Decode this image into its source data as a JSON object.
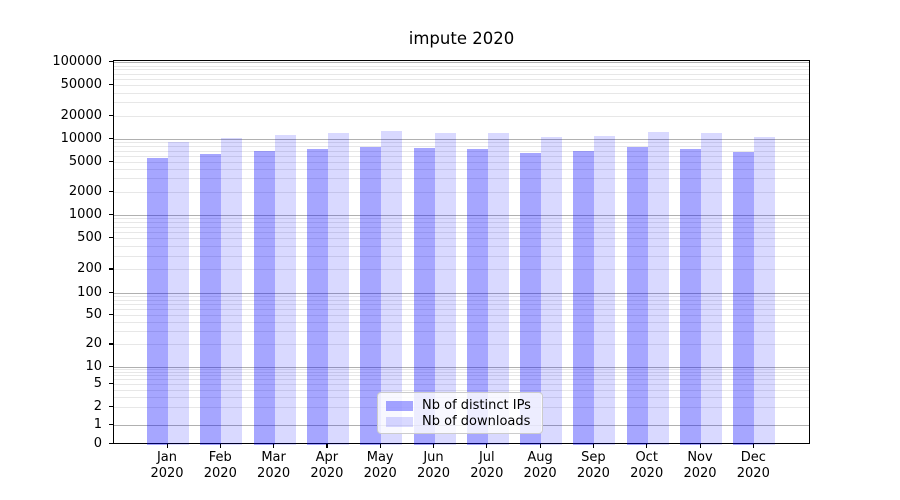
{
  "chart_data": {
    "type": "bar",
    "title": "impute 2020",
    "categories": [
      "Jan 2020",
      "Feb 2020",
      "Mar 2020",
      "Apr 2020",
      "May 2020",
      "Jun 2020",
      "Jul 2020",
      "Aug 2020",
      "Sep 2020",
      "Oct 2020",
      "Nov 2020",
      "Dec 2020"
    ],
    "x_tick_lines": [
      [
        "Jan",
        "2020"
      ],
      [
        "Feb",
        "2020"
      ],
      [
        "Mar",
        "2020"
      ],
      [
        "Apr",
        "2020"
      ],
      [
        "May",
        "2020"
      ],
      [
        "Jun",
        "2020"
      ],
      [
        "Jul",
        "2020"
      ],
      [
        "Aug",
        "2020"
      ],
      [
        "Sep",
        "2020"
      ],
      [
        "Oct",
        "2020"
      ],
      [
        "Nov",
        "2020"
      ],
      [
        "Dec",
        "2020"
      ]
    ],
    "series": [
      {
        "name": "Nb of distinct IPs",
        "color": "rgba(0,0,255,0.35)",
        "values": [
          5600,
          6300,
          7000,
          7500,
          8000,
          7700,
          7400,
          6500,
          6900,
          7800,
          7400,
          6700
        ]
      },
      {
        "name": "Nb of downloads",
        "color": "rgba(0,0,255,0.15)",
        "values": [
          9200,
          10300,
          11300,
          11900,
          13000,
          11900,
          11900,
          10600,
          11000,
          12300,
          12000,
          10700
        ]
      }
    ],
    "yscale": "symlog",
    "ylim": [
      0,
      100000
    ],
    "yticks": [
      0,
      1,
      2,
      5,
      10,
      20,
      50,
      100,
      200,
      500,
      1000,
      2000,
      5000,
      10000,
      20000,
      50000,
      100000
    ],
    "grid": "both",
    "legend_position": "lower center",
    "colors": {
      "major_grid": "#b0b0b0",
      "minor_grid": "#e7e7e7",
      "spine": "#000000"
    }
  }
}
